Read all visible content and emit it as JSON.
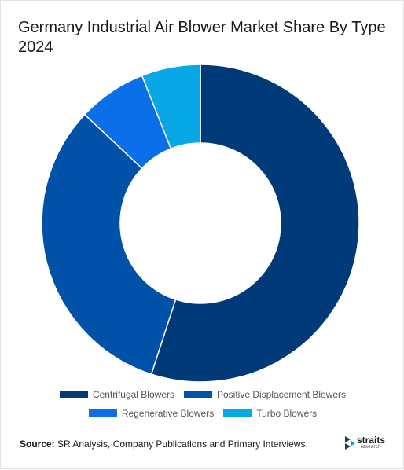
{
  "title": "Germany Industrial Air Blower Market Share By Type 2024",
  "chart_data": {
    "type": "pie",
    "variant": "donut",
    "title": "Germany Industrial Air Blower Market Share By Type 2024",
    "categories": [
      "Centrifugal Blowers",
      "Positive Displacement Blowers",
      "Regenerative Blowers",
      "Turbo Blowers"
    ],
    "values": [
      55,
      32,
      7,
      6
    ],
    "unit": "%",
    "colors": [
      "#003a78",
      "#0051a8",
      "#0a6fe8",
      "#08a8e6"
    ],
    "legend_position": "bottom"
  },
  "source": {
    "label": "Source:",
    "text": " SR Analysis, Company Publications and Primary Interviews."
  },
  "logo": {
    "brand": "straits",
    "sub": "research"
  }
}
